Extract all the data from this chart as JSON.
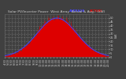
{
  "title": "Solar PV/Inverter Power  West Array  Actual & Avg / (kW)",
  "title_fontsize": 3.2,
  "background_color": "#404040",
  "plot_bg_color": "#404040",
  "grid_color": "#888888",
  "bar_color": "#dd0000",
  "line_color_avg": "#4444ff",
  "ylabel": "kW",
  "ylabel_fontsize": 3.0,
  "tick_fontsize": 2.5,
  "tick_color": "#cccccc",
  "title_color": "#cccccc",
  "ylim": [
    0,
    55
  ],
  "yticks": [
    0,
    5,
    10,
    15,
    20,
    25,
    30,
    35,
    40,
    45,
    50
  ],
  "num_points": 288,
  "peak_idx": 144,
  "peak_value": 50,
  "sigma": 55,
  "time_labels": [
    "4:30",
    "5:00",
    "5:30",
    "6:00",
    "6:30",
    "7:00",
    "7:30",
    "8:00",
    "8:30",
    "9:00",
    "9:30",
    "10:00",
    "10:30",
    "11:00",
    "11:30",
    "12:00",
    "12:30",
    "13:00",
    "13:30",
    "14:00",
    "14:30",
    "15:00",
    "15:30",
    "16:00",
    "16:30",
    "17:00",
    "17:30",
    "18:00",
    "18:30",
    "19:00",
    "19:30",
    "20:00",
    "20:30"
  ],
  "legend_avg_label": "AVERAGE",
  "legend_act_label": "ACTUAL"
}
